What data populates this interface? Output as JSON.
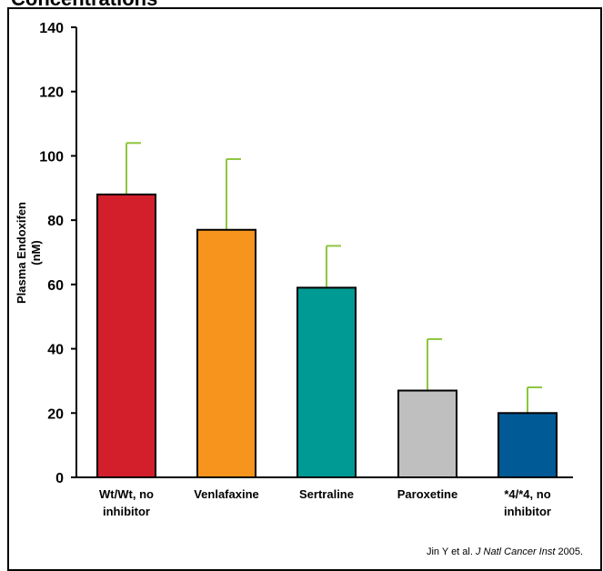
{
  "header": {
    "title_fragment": "Concentrations"
  },
  "chart_data": {
    "type": "bar",
    "categories": [
      "Wt/Wt, no\ninhibitor",
      "Venlafaxine",
      "Sertraline",
      "Paroxetine",
      "*4/*4, no\ninhibitor"
    ],
    "values": [
      88,
      77,
      59,
      27,
      20
    ],
    "error_upper": [
      104,
      99,
      72,
      43,
      28
    ],
    "bar_colors": [
      "#d21f2b",
      "#f7941d",
      "#009a94",
      "#bfbfbf",
      "#005a96"
    ],
    "error_color": "#8dc63f",
    "ylabel_line1": "Plasma   Endoxifen",
    "ylabel_line2": "(nM)",
    "yticks": [
      0,
      20,
      40,
      60,
      80,
      100,
      120,
      140
    ],
    "ylim": [
      0,
      140
    ],
    "grid": false
  },
  "citation": {
    "authors": "Jin Y et al.",
    "journal": "J Natl Cancer Inst",
    "year": "2005."
  }
}
